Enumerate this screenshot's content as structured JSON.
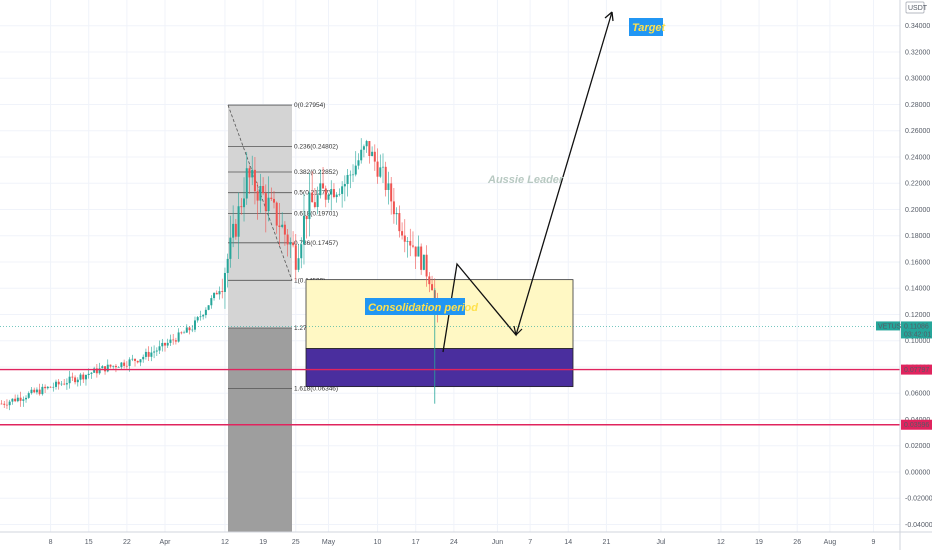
{
  "chart_data": {
    "type": "candlestick",
    "symbol": "VETUSDT",
    "currency_label": "USDT",
    "price_axis": {
      "min": -0.045,
      "max": 0.355,
      "ticks": [
        0.34,
        0.32,
        0.3,
        0.28,
        0.26,
        0.24,
        0.22,
        0.2,
        0.18,
        0.16,
        0.14,
        0.12,
        0.1,
        0.08,
        0.06,
        0.04,
        0.02,
        0.0,
        -0.02,
        -0.04
      ],
      "tick_labels": [
        "0.34000",
        "0.32000",
        "0.30000",
        "0.28000",
        "0.26000",
        "0.24000",
        "0.22000",
        "0.20000",
        "0.18000",
        "0.16000",
        "0.14000",
        "0.12000",
        "0.10000",
        "0.08000",
        "0.06000",
        "0.04000",
        "0.02000",
        "0.00000",
        "-0.02000",
        "-0.04000"
      ]
    },
    "time_axis": {
      "labels": [
        "8",
        "15",
        "22",
        "Apr",
        "12",
        "19",
        "25",
        "May",
        "10",
        "17",
        "24",
        "Jun",
        "7",
        "14",
        "21",
        "Jul",
        "12",
        "19",
        "26",
        "Aug",
        "9"
      ],
      "label_days": [
        -21,
        -14,
        -7,
        0,
        11,
        18,
        24,
        30,
        39,
        46,
        53,
        61,
        67,
        74,
        81,
        91,
        102,
        109,
        116,
        122,
        130
      ]
    },
    "price_marker": {
      "label": "VETUSDT",
      "value": 0.11086,
      "text": "0.11086",
      "countdown": "03:42:01",
      "color": "#26a69a"
    },
    "horizontal_lines": [
      {
        "value": 0.07797,
        "text": "0.07797",
        "color": "#e0245e"
      },
      {
        "value": 0.03596,
        "text": "0.03596",
        "color": "#e0245e"
      }
    ],
    "fib_levels": [
      {
        "ratio": "0",
        "value": 0.27954,
        "text": "0(0.27954)"
      },
      {
        "ratio": "0.236",
        "value": 0.24802,
        "text": "0.236(0.24802)"
      },
      {
        "ratio": "0.382",
        "value": 0.22852,
        "text": "0.382(0.22852)"
      },
      {
        "ratio": "0.5",
        "value": 0.21277,
        "text": "0.5(0.21277)"
      },
      {
        "ratio": "0.618",
        "value": 0.19701,
        "text": "0.618(0.19701)"
      },
      {
        "ratio": "0.786",
        "value": 0.17457,
        "text": "0.786(0.17457)"
      },
      {
        "ratio": "1",
        "value": 0.14599,
        "text": "1(0.14599)"
      },
      {
        "ratio": "1.272",
        "value": 0.10967,
        "text": "1.272(0.10967)"
      },
      {
        "ratio": "1.618",
        "value": 0.06346,
        "text": "1.618(0.06346)"
      }
    ],
    "consolidation_zone": {
      "top": 0.1465,
      "bottom": 0.065,
      "split": 0.094
    },
    "annotations": {
      "watermark": "Aussie Leader",
      "consolidation": "Consolidation period",
      "target": "Target"
    },
    "colors": {
      "up": "#26a69a",
      "down": "#ef5350",
      "zone_fill": "#fff8c4",
      "zone_dark": "#4a2e9e",
      "label_bg": "#2196f3",
      "label_text": "#ffe14d"
    }
  }
}
